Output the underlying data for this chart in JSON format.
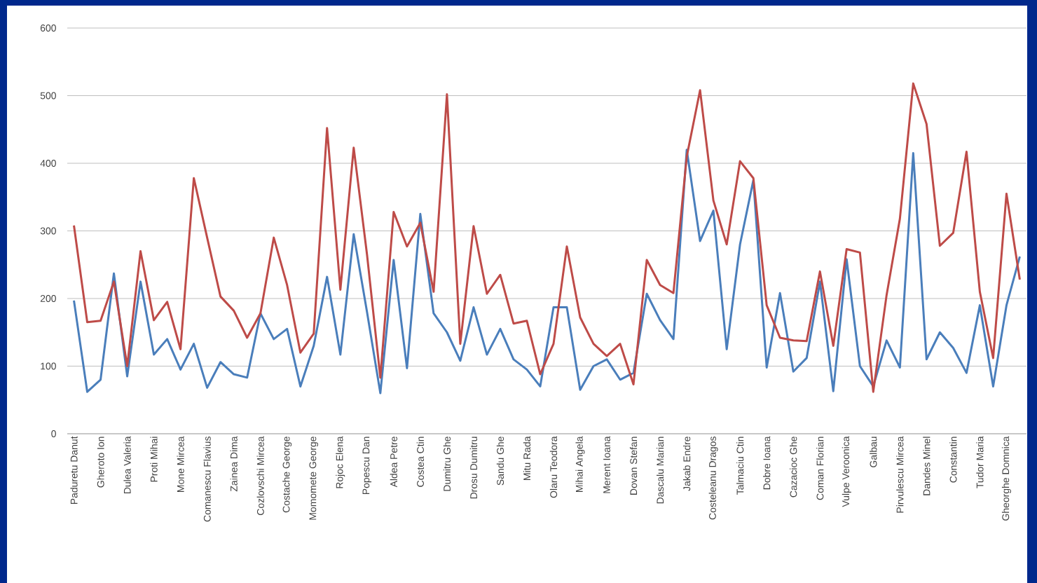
{
  "chart_data": {
    "type": "line",
    "categories": [
      "Paduretu Danut",
      null,
      "Gheroto Ion",
      null,
      "Dulea Valeria",
      null,
      "Proti Mihai",
      null,
      "Mone Mircea",
      null,
      "Comanescu Flavius",
      null,
      "Zainea Dima",
      null,
      "Cozlovschi Mircea",
      null,
      "Costache George",
      null,
      "Momomete George",
      null,
      "Rojoc Elena",
      null,
      "Popescu Dan",
      null,
      "Aldea Petre",
      null,
      "Costea Ctin",
      null,
      "Dumitru Ghe",
      null,
      "Drosu Dumitru",
      null,
      "Sandu Ghe",
      null,
      "Mitu Rada",
      null,
      "Olaru Teodora",
      null,
      "Mihai Angela",
      null,
      "Merent Ioana",
      null,
      "Dovan Stefan",
      null,
      "Dascalu Marian",
      null,
      "Jakab Endre",
      null,
      "Costeleanu Dragos",
      null,
      "Talmaciu Ctin",
      null,
      "Dobre Ioana",
      null,
      "Cazacioc Ghe",
      null,
      "Coman Florian",
      null,
      "Vulpe Veroonica",
      null,
      "Galbau",
      null,
      "Pirvulescu Mircea",
      null,
      "Dandes Minel",
      null,
      "Constantin",
      null,
      "Tudor Maria",
      null,
      "Gheorghe Domnica",
      null
    ],
    "series": [
      {
        "color": "#4a7ebb",
        "values": [
          197,
          62,
          80,
          237,
          85,
          225,
          117,
          140,
          95,
          133,
          68,
          106,
          88,
          83,
          178,
          140,
          155,
          70,
          130,
          232,
          117,
          295,
          180,
          60,
          257,
          97,
          325,
          178,
          150,
          108,
          187,
          117,
          155,
          110,
          95,
          70,
          187,
          187,
          65,
          100,
          110,
          80,
          90,
          207,
          168,
          140,
          420,
          285,
          330,
          125,
          280,
          375,
          98,
          208,
          92,
          112,
          225,
          63,
          258,
          100,
          70,
          138,
          98,
          415,
          110,
          150,
          127,
          90,
          190,
          70,
          190,
          262
        ]
      },
      {
        "color": "#be4b48",
        "values": [
          308,
          165,
          167,
          225,
          100,
          270,
          168,
          195,
          125,
          378,
          290,
          203,
          182,
          142,
          178,
          290,
          220,
          120,
          148,
          452,
          213,
          423,
          265,
          83,
          328,
          277,
          312,
          210,
          502,
          133,
          307,
          207,
          235,
          163,
          167,
          88,
          133,
          277,
          172,
          133,
          115,
          133,
          73,
          257,
          220,
          208,
          410,
          508,
          345,
          280,
          403,
          378,
          190,
          142,
          138,
          137,
          240,
          130,
          273,
          268,
          62,
          205,
          318,
          518,
          458,
          278,
          297,
          417,
          210,
          112,
          355,
          228
        ]
      }
    ],
    "ylim": [
      0,
      600
    ],
    "yticks": [
      0,
      100,
      200,
      300,
      400,
      500,
      600
    ],
    "grid": "y",
    "legend": false,
    "marker": "none",
    "line_style": "solid"
  }
}
